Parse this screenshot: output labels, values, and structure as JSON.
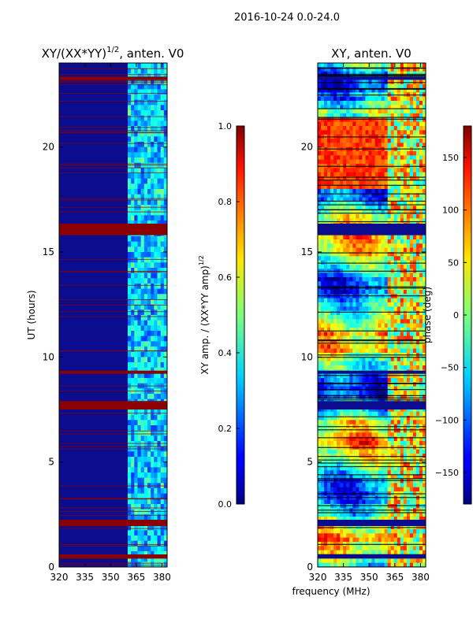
{
  "figure_title": "2016-10-24 0.0-24.0",
  "shared_xlabel": "frequency (MHz)",
  "colors": {
    "background_blue": "#0c0c8f",
    "flag_red": "#8b0000",
    "axis": "#000000"
  },
  "chart_data": [
    {
      "id": "xy-normalized",
      "type": "heatmap",
      "title_main": "XY/(XX*YY)",
      "title_sup": "1/2",
      "title_rest": ", anten. V0",
      "xlabel": "",
      "ylabel": "UT (hours)",
      "xlim": [
        320,
        383
      ],
      "ylim": [
        0,
        24
      ],
      "xticks": [
        320,
        335,
        350,
        365,
        380
      ],
      "yticks": [
        0,
        5,
        10,
        15,
        20
      ],
      "signal_band_mhz": [
        360,
        383
      ],
      "flagged_hours": [
        [
          0.4,
          0.6
        ],
        [
          1.95,
          2.25
        ],
        [
          7.5,
          7.9
        ],
        [
          9.2,
          9.35
        ],
        [
          15.8,
          16.35
        ],
        [
          23.2,
          23.35
        ]
      ],
      "colorbar": {
        "label": "XY amp. / (XX*YY amp)",
        "label_sup": "1/2",
        "range": [
          0.0,
          1.0
        ],
        "ticks": [
          "0.0",
          "0.2",
          "0.4",
          "0.6",
          "0.8",
          "1.0"
        ]
      }
    },
    {
      "id": "xy-phase",
      "type": "heatmap",
      "title": "XY, anten. V0",
      "xlabel": "frequency (MHz)",
      "ylabel": "",
      "xlim": [
        320,
        383
      ],
      "ylim": [
        0,
        24
      ],
      "xticks": [
        320,
        335,
        350,
        365,
        380
      ],
      "yticks": [
        0,
        5,
        10,
        15,
        20
      ],
      "flagged_hours": [
        [
          0.4,
          0.6
        ],
        [
          1.95,
          2.25
        ],
        [
          7.5,
          7.9
        ],
        [
          9.2,
          9.35
        ],
        [
          15.8,
          16.35
        ],
        [
          23.2,
          23.35
        ]
      ],
      "colorbar": {
        "label": "phase (deg)",
        "range": [
          -180,
          180
        ],
        "ticks": [
          "−150",
          "−100",
          "−50",
          "0",
          "50",
          "100",
          "150"
        ]
      }
    }
  ]
}
